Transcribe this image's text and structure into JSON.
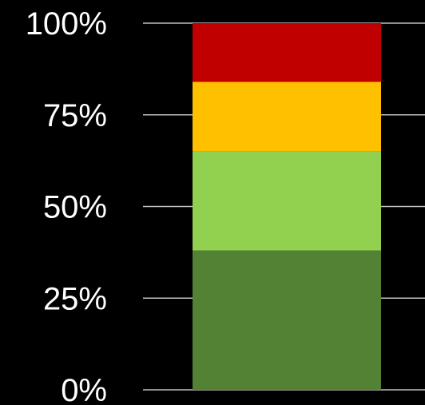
{
  "chart_data": {
    "type": "bar",
    "stacked": true,
    "orientation": "vertical",
    "categories": [
      ""
    ],
    "series": [
      {
        "values": [
          38
        ],
        "color": "#548235"
      },
      {
        "values": [
          27
        ],
        "color": "#92d050"
      },
      {
        "values": [
          19
        ],
        "color": "#ffc000"
      },
      {
        "values": [
          16
        ],
        "color": "#c00000"
      }
    ],
    "y_ticks": [
      "0%",
      "25%",
      "50%",
      "75%",
      "100%"
    ],
    "ylim": [
      0,
      100
    ],
    "grid": true,
    "legend": "none",
    "background": "#000000",
    "text_color": "#ffffff",
    "grid_color": "#bfbfbf"
  }
}
